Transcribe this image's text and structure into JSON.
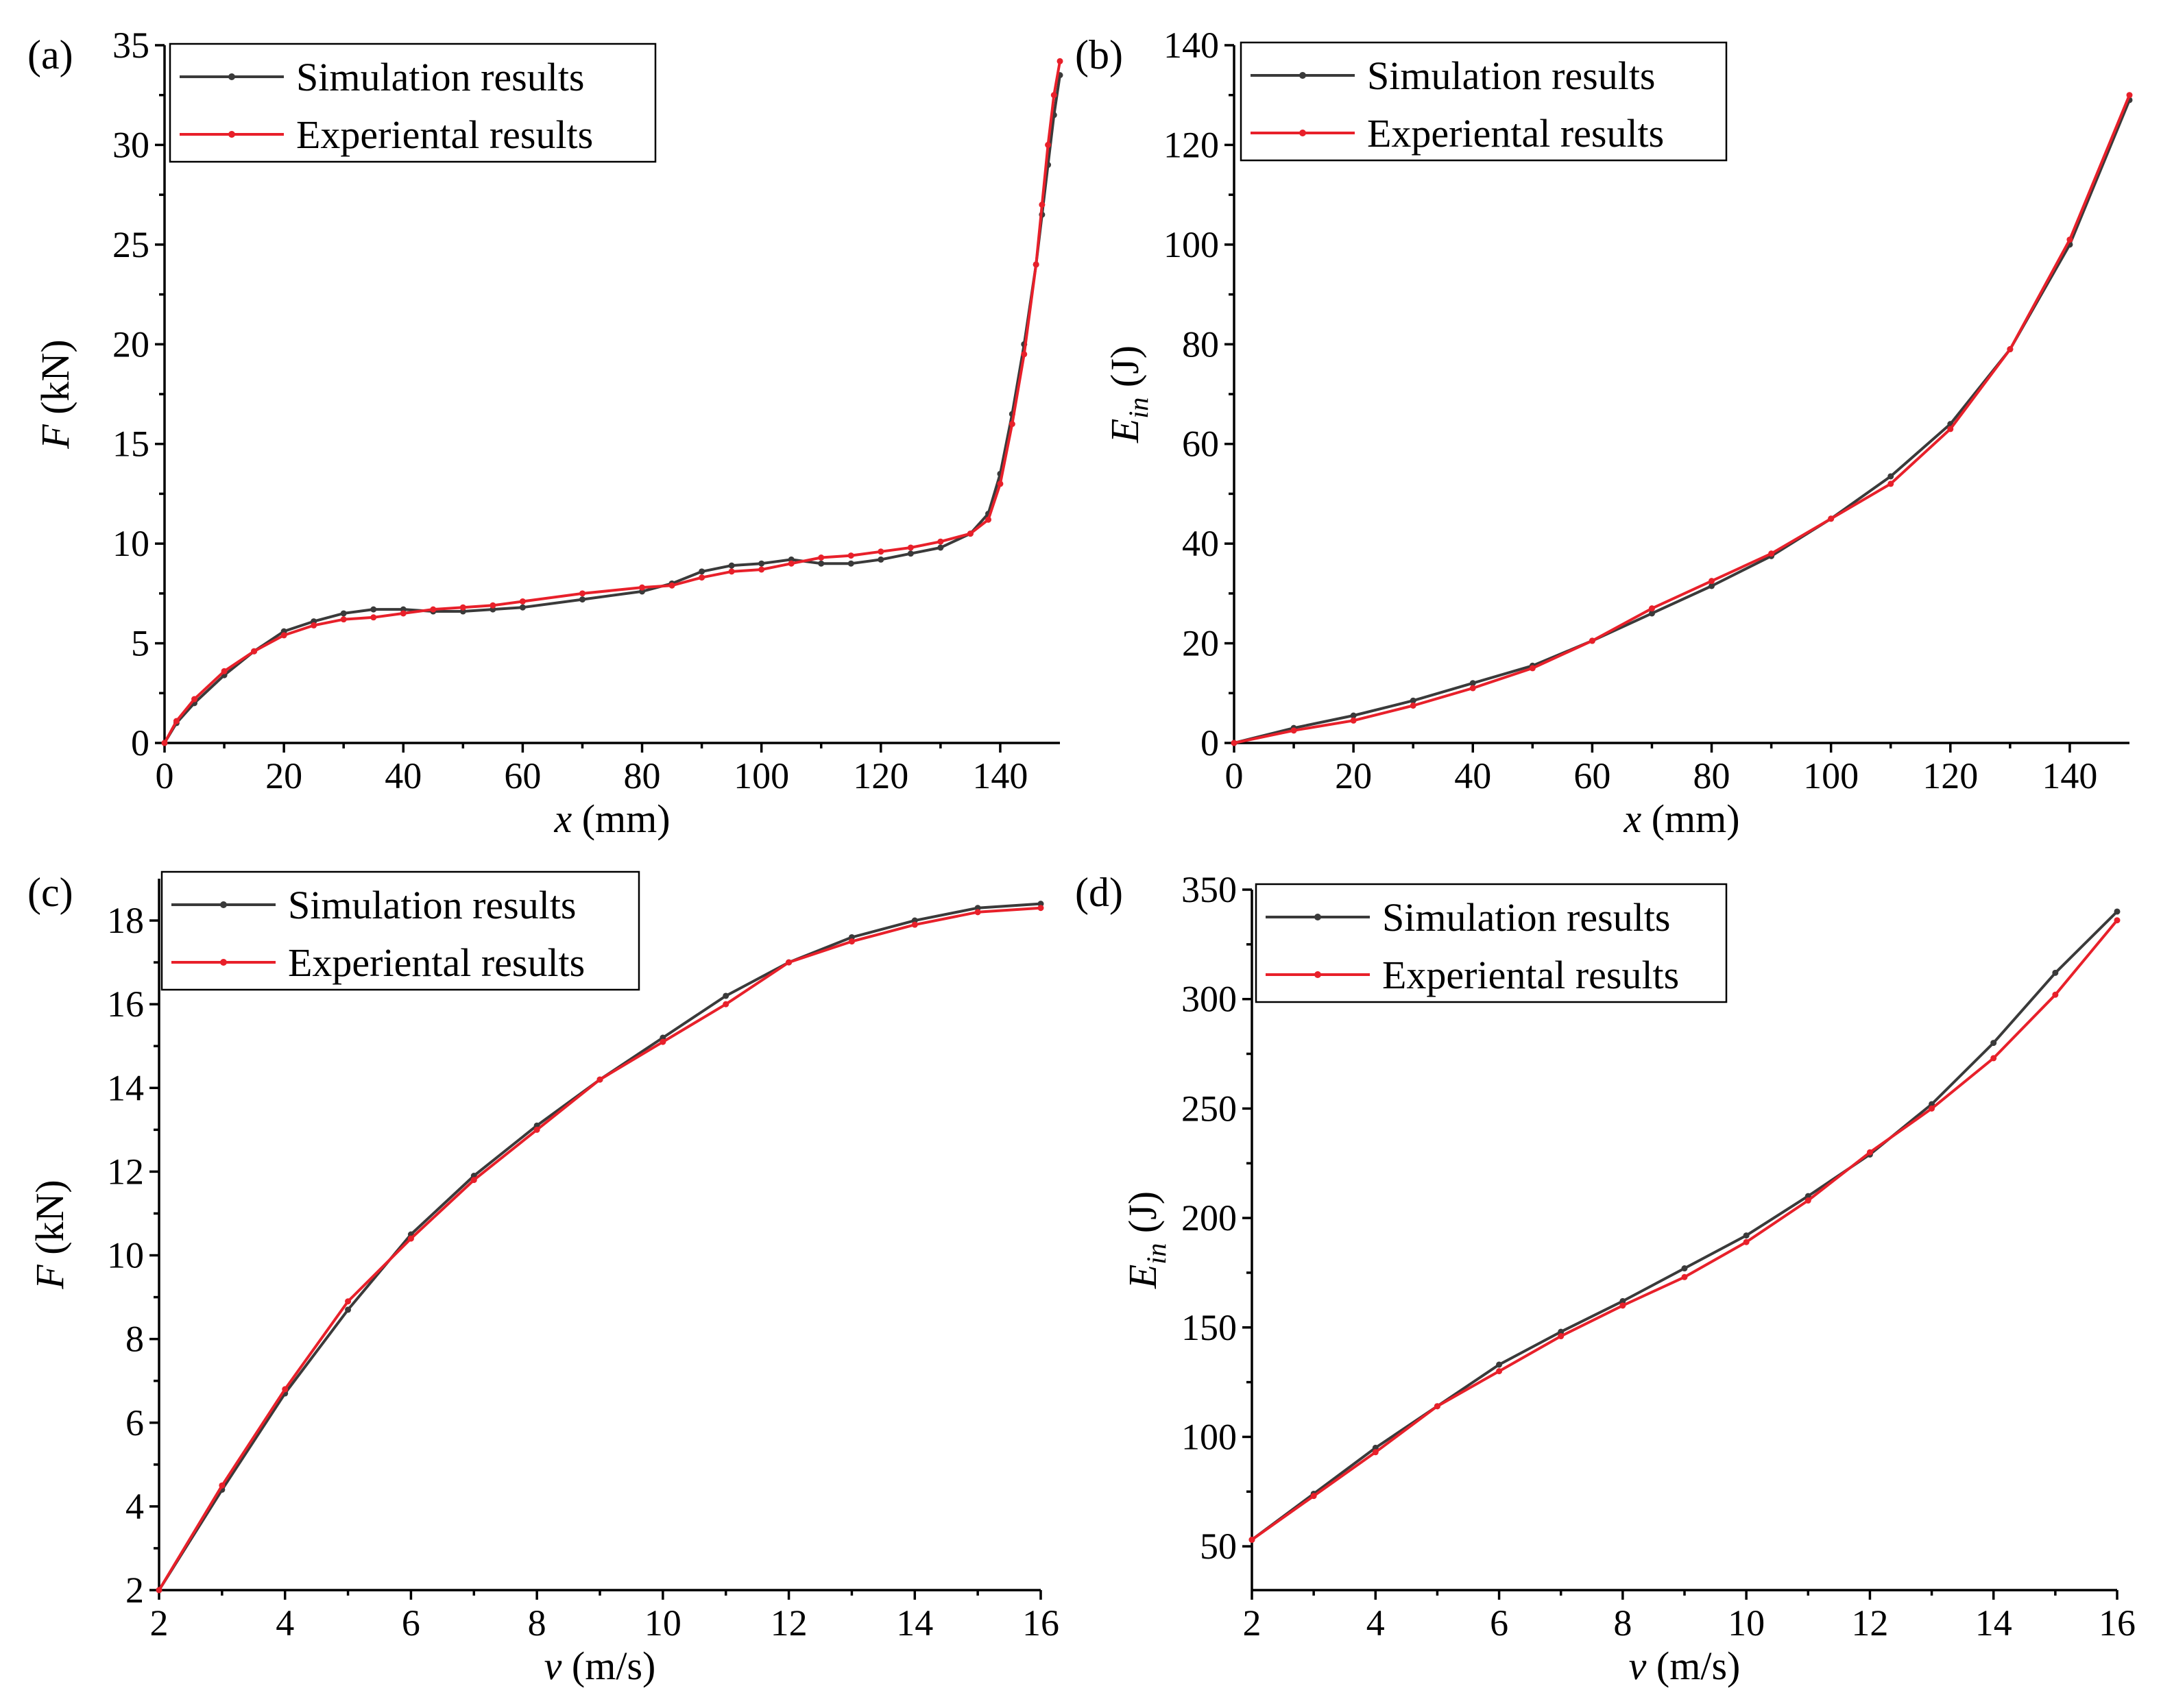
{
  "colors": {
    "simulation": "#3a3a3a",
    "experimental": "#e8202a"
  },
  "chart_data": [
    {
      "panel": "(a)",
      "type": "line",
      "xlabel_italic": "x",
      "xlabel_rest": " (mm)",
      "ylabel_italic": "F",
      "ylabel_sub": "",
      "ylabel_rest": " (kN)",
      "xlim": [
        0,
        150
      ],
      "ylim": [
        0,
        35
      ],
      "xticks": [
        0,
        20,
        40,
        60,
        80,
        100,
        120,
        140
      ],
      "yticks": [
        0,
        5,
        10,
        15,
        20,
        25,
        30,
        35
      ],
      "legend": "top-left",
      "series": [
        {
          "name": "Simulation results",
          "color_key": "simulation",
          "x": [
            0,
            2,
            5,
            10,
            15,
            20,
            25,
            30,
            35,
            40,
            45,
            50,
            55,
            60,
            70,
            80,
            85,
            90,
            95,
            100,
            105,
            110,
            115,
            120,
            125,
            130,
            135,
            138,
            140,
            142,
            144,
            146,
            147,
            148,
            149,
            150
          ],
          "y": [
            0,
            1.0,
            2.0,
            3.4,
            4.6,
            5.6,
            6.1,
            6.5,
            6.7,
            6.7,
            6.6,
            6.6,
            6.7,
            6.8,
            7.2,
            7.6,
            8.0,
            8.6,
            8.9,
            9.0,
            9.2,
            9.0,
            9.0,
            9.2,
            9.5,
            9.8,
            10.5,
            11.5,
            13.5,
            16.5,
            20.0,
            24.0,
            26.5,
            29.0,
            31.5,
            33.5
          ]
        },
        {
          "name": "Experiental results",
          "color_key": "experimental",
          "x": [
            0,
            2,
            5,
            10,
            15,
            20,
            25,
            30,
            35,
            40,
            45,
            50,
            55,
            60,
            70,
            80,
            85,
            90,
            95,
            100,
            105,
            110,
            115,
            120,
            125,
            130,
            135,
            138,
            140,
            142,
            144,
            146,
            147,
            148,
            149,
            150
          ],
          "y": [
            0,
            1.1,
            2.2,
            3.6,
            4.6,
            5.4,
            5.9,
            6.2,
            6.3,
            6.5,
            6.7,
            6.8,
            6.9,
            7.1,
            7.5,
            7.8,
            7.9,
            8.3,
            8.6,
            8.7,
            9.0,
            9.3,
            9.4,
            9.6,
            9.8,
            10.1,
            10.5,
            11.2,
            13.0,
            16.0,
            19.5,
            24.0,
            27.0,
            30.0,
            32.5,
            34.2
          ]
        }
      ]
    },
    {
      "panel": "(b)",
      "type": "line",
      "xlabel_italic": "x",
      "xlabel_rest": " (mm)",
      "ylabel_italic": "E",
      "ylabel_sub": "in",
      "ylabel_rest": " (J)",
      "xlim": [
        0,
        150
      ],
      "ylim": [
        0,
        140
      ],
      "xticks": [
        0,
        20,
        40,
        60,
        80,
        100,
        120,
        140
      ],
      "yticks": [
        0,
        20,
        40,
        60,
        80,
        100,
        120,
        140
      ],
      "legend": "top-left",
      "series": [
        {
          "name": "Simulation results",
          "color_key": "simulation",
          "x": [
            0,
            10,
            20,
            30,
            40,
            50,
            60,
            70,
            80,
            90,
            100,
            110,
            120,
            130,
            140,
            150
          ],
          "y": [
            0,
            3,
            5.5,
            8.5,
            12,
            15.5,
            20.5,
            26,
            31.5,
            37.5,
            45,
            53.5,
            64,
            79,
            100,
            129
          ]
        },
        {
          "name": "Experiental results",
          "color_key": "experimental",
          "x": [
            0,
            10,
            20,
            30,
            40,
            50,
            60,
            70,
            80,
            90,
            100,
            110,
            120,
            130,
            140,
            150
          ],
          "y": [
            0,
            2.5,
            4.5,
            7.5,
            11,
            15,
            20.5,
            27,
            32.5,
            38,
            45,
            52,
            63,
            79,
            101,
            130
          ]
        }
      ]
    },
    {
      "panel": "(c)",
      "type": "line",
      "xlabel_italic": "v",
      "xlabel_rest": " (m/s)",
      "ylabel_italic": "F",
      "ylabel_sub": "",
      "ylabel_rest": " (kN)",
      "xlim": [
        2,
        16
      ],
      "ylim": [
        2,
        19
      ],
      "xticks": [
        2,
        4,
        6,
        8,
        10,
        12,
        14,
        16
      ],
      "yticks": [
        2,
        4,
        6,
        8,
        10,
        12,
        14,
        16,
        18
      ],
      "legend": "top-left",
      "series": [
        {
          "name": "Simulation results",
          "color_key": "simulation",
          "x": [
            2,
            3,
            4,
            5,
            6,
            7,
            8,
            9,
            10,
            11,
            12,
            13,
            14,
            15,
            16
          ],
          "y": [
            2.0,
            4.4,
            6.7,
            8.7,
            10.5,
            11.9,
            13.1,
            14.2,
            15.2,
            16.2,
            17.0,
            17.6,
            18.0,
            18.3,
            18.4
          ]
        },
        {
          "name": "Experiental results",
          "color_key": "experimental",
          "x": [
            2,
            3,
            4,
            5,
            6,
            7,
            8,
            9,
            10,
            11,
            12,
            13,
            14,
            15,
            16
          ],
          "y": [
            2.0,
            4.5,
            6.8,
            8.9,
            10.4,
            11.8,
            13.0,
            14.2,
            15.1,
            16.0,
            17.0,
            17.5,
            17.9,
            18.2,
            18.3
          ]
        }
      ]
    },
    {
      "panel": "(d)",
      "type": "line",
      "xlabel_italic": "v",
      "xlabel_rest": " (m/s)",
      "ylabel_italic": "E",
      "ylabel_sub": "in",
      "ylabel_rest": " (J)",
      "xlim": [
        2,
        16
      ],
      "ylim": [
        30,
        350
      ],
      "xticks": [
        2,
        4,
        6,
        8,
        10,
        12,
        14,
        16
      ],
      "yticks": [
        50,
        100,
        150,
        200,
        250,
        300,
        350
      ],
      "legend": "top-left",
      "series": [
        {
          "name": "Simulation results",
          "color_key": "simulation",
          "x": [
            2,
            3,
            4,
            5,
            6,
            7,
            8,
            9,
            10,
            11,
            12,
            13,
            14,
            15,
            16
          ],
          "y": [
            53,
            74,
            95,
            114,
            133,
            148,
            162,
            177,
            192,
            210,
            229,
            252,
            280,
            312,
            340
          ]
        },
        {
          "name": "Experiental results",
          "color_key": "experimental",
          "x": [
            2,
            3,
            4,
            5,
            6,
            7,
            8,
            9,
            10,
            11,
            12,
            13,
            14,
            15,
            16
          ],
          "y": [
            53,
            73,
            93,
            114,
            130,
            146,
            160,
            173,
            189,
            208,
            230,
            250,
            273,
            302,
            336
          ]
        }
      ]
    }
  ]
}
